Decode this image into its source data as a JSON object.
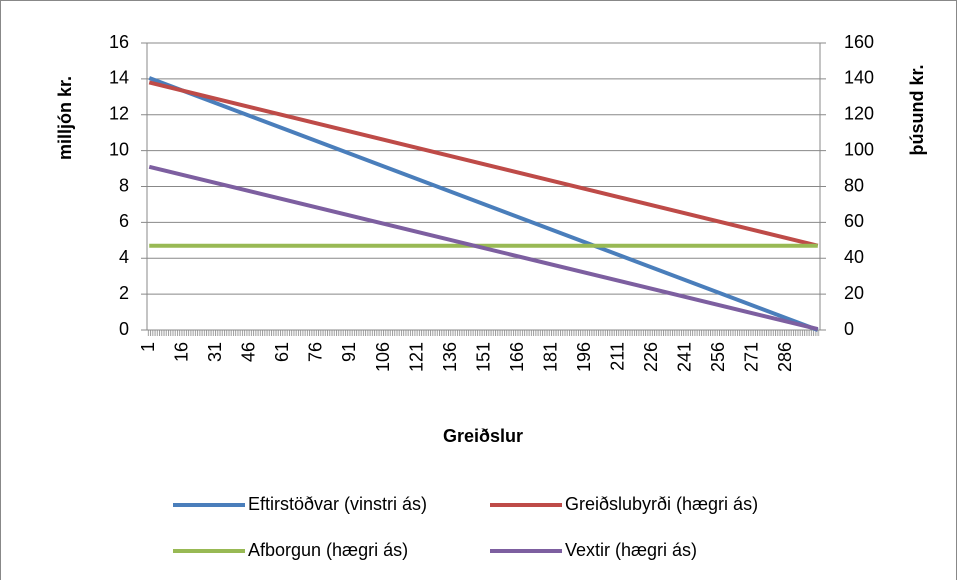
{
  "chart_data": {
    "type": "line",
    "x": [
      1,
      300
    ],
    "xlim": [
      0,
      301
    ],
    "xticks": [
      1,
      16,
      31,
      46,
      61,
      76,
      91,
      106,
      121,
      136,
      151,
      166,
      181,
      196,
      211,
      226,
      241,
      256,
      271,
      286
    ],
    "ylim": [
      0,
      16
    ],
    "yticks": [
      0,
      2,
      4,
      6,
      8,
      10,
      12,
      14,
      16
    ],
    "y2lim": [
      0,
      160
    ],
    "y2ticks": [
      0,
      20,
      40,
      60,
      80,
      100,
      120,
      140,
      160
    ],
    "xlabel": "Greiðslur",
    "ylabel": "milljón kr.",
    "y2label": "þúsund kr.",
    "grid": true,
    "series": [
      {
        "name": "Eftirstöðvar (vinstri ás)",
        "color": "#4a7ebb",
        "values": [
          14.05,
          0
        ]
      },
      {
        "name": "Greiðslubyrði (hægri ás)",
        "color": "#be4b48",
        "values": [
          138,
          47
        ],
        "axis": "y2"
      },
      {
        "name": "Afborgun (hægri ás)",
        "color": "#98b954",
        "values": [
          47,
          47
        ],
        "axis": "y2"
      },
      {
        "name": "Vextir (hægri ás)",
        "color": "#7d5fa0",
        "values": [
          91,
          0.5
        ],
        "axis": "y2"
      }
    ]
  }
}
